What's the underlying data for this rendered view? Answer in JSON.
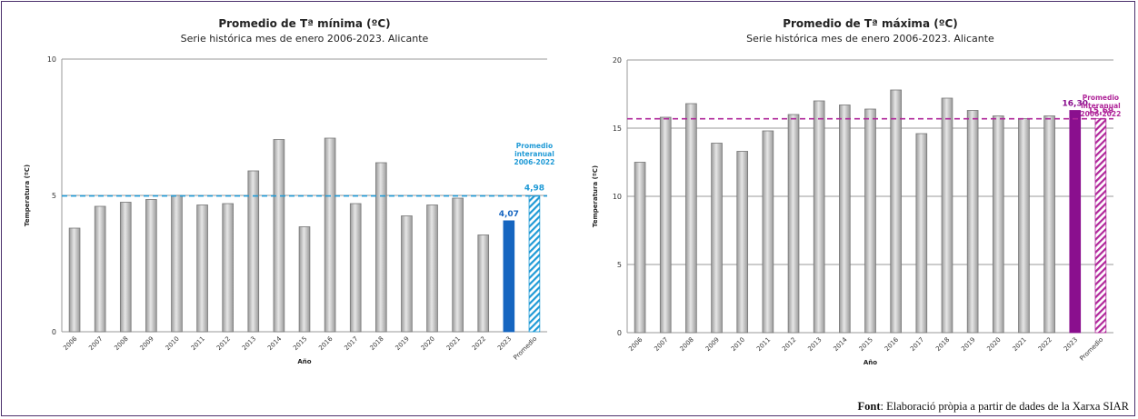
{
  "source": {
    "label": "Font",
    "text": ": Elaboració pròpia a partir de dades de la Xarxa SIAR"
  },
  "chart_data": [
    {
      "type": "bar",
      "title": "Promedio de Tª mínima (ºC)",
      "subtitle": "Serie histórica mes de enero 2006-2023. Alicante",
      "xlabel": "Año",
      "ylabel": "Temperatura (ºC)",
      "ylim": [
        0,
        10
      ],
      "yticks": [
        0,
        5,
        10
      ],
      "categories": [
        "2006",
        "2007",
        "2008",
        "2009",
        "2010",
        "2011",
        "2012",
        "2013",
        "2014",
        "2015",
        "2016",
        "2017",
        "2018",
        "2019",
        "2020",
        "2021",
        "2022",
        "2023",
        "Promedio"
      ],
      "values": [
        3.8,
        4.6,
        4.75,
        4.85,
        5.0,
        4.65,
        4.7,
        5.9,
        7.05,
        3.85,
        7.1,
        4.7,
        6.2,
        4.25,
        4.65,
        4.9,
        3.55,
        4.07,
        4.98
      ],
      "highlight": {
        "category": "2023",
        "label": "4,07",
        "color": "#1565c0"
      },
      "average": {
        "category": "Promedio",
        "label": "4,98",
        "value": 4.98,
        "note": [
          "Promedio",
          "interanual",
          "2006-2022"
        ],
        "color": "#1f9ad6"
      },
      "grid": true
    },
    {
      "type": "bar",
      "title": "Promedio de Tª máxima (ºC)",
      "subtitle": "Serie histórica mes de enero 2006-2023. Alicante",
      "xlabel": "Año",
      "ylabel": "Temperatura (ºC)",
      "ylim": [
        0,
        20
      ],
      "yticks": [
        0,
        5,
        10,
        15,
        20
      ],
      "categories": [
        "2006",
        "2007",
        "2008",
        "2009",
        "2010",
        "2011",
        "2012",
        "2013",
        "2014",
        "2015",
        "2016",
        "2017",
        "2018",
        "2019",
        "2020",
        "2021",
        "2022",
        "2023",
        "Promedio"
      ],
      "values": [
        12.5,
        15.8,
        16.8,
        13.9,
        13.3,
        14.8,
        16.0,
        17.0,
        16.7,
        16.4,
        17.8,
        14.6,
        17.2,
        16.3,
        15.9,
        15.7,
        15.9,
        16.3,
        15.69
      ],
      "highlight": {
        "category": "2023",
        "label": "16,30",
        "color": "#8a0f8e"
      },
      "average": {
        "category": "Promedio",
        "label": "15,69",
        "value": 15.69,
        "note": [
          "Promedio",
          "interanual",
          "2006-2022"
        ],
        "color": "#b0279a"
      },
      "grid": true
    }
  ]
}
